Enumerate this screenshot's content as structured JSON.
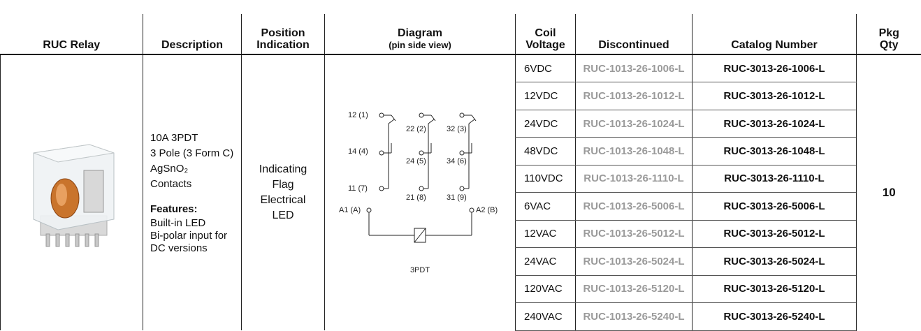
{
  "table": {
    "headers": [
      [
        "RUC Relay"
      ],
      [
        "Description"
      ],
      [
        "Position",
        "Indication"
      ],
      [
        "Diagram"
      ],
      [
        "Coil",
        "Voltage"
      ],
      [
        "Discontinued"
      ],
      [
        "Catalog Number"
      ],
      [
        "Pkg",
        "Qty"
      ]
    ],
    "diagram_subtitle": "(pin side view)",
    "description": [
      "10A 3PDT",
      "3 Pole (3 Form C)",
      "AgSnO₂",
      "Contacts"
    ],
    "features_heading": "Features:",
    "features": [
      "Built-in LED",
      "Bi-polar input for DC versions"
    ],
    "position": [
      "Indicating",
      "Flag",
      "Electrical",
      "LED"
    ],
    "diagram": {
      "pins": [
        "12 (1)",
        "22 (2)",
        "32 (3)",
        "14 (4)",
        "24 (5)",
        "34 (6)",
        "11 (7)",
        "21 (8)",
        "31 (9)",
        "A1 (A)",
        "A2 (B)"
      ],
      "caption": "3PDT"
    },
    "rows": [
      [
        "6VDC",
        "RUC-1013-26-1006-L",
        "RUC-3013-26-1006-L"
      ],
      [
        "12VDC",
        "RUC-1013-26-1012-L",
        "RUC-3013-26-1012-L"
      ],
      [
        "24VDC",
        "RUC-1013-26-1024-L",
        "RUC-3013-26-1024-L"
      ],
      [
        "48VDC",
        "RUC-1013-26-1048-L",
        "RUC-3013-26-1048-L"
      ],
      [
        "110VDC",
        "RUC-1013-26-1110-L",
        "RUC-3013-26-1110-L"
      ],
      [
        "6VAC",
        "RUC-1013-26-5006-L",
        "RUC-3013-26-5006-L"
      ],
      [
        "12VAC",
        "RUC-1013-26-5012-L",
        "RUC-3013-26-5012-L"
      ],
      [
        "24VAC",
        "RUC-1013-26-5024-L",
        "RUC-3013-26-5024-L"
      ],
      [
        "120VAC",
        "RUC-1013-26-5120-L",
        "RUC-3013-26-5120-L"
      ],
      [
        "240VAC",
        "RUC-1013-26-5240-L",
        "RUC-3013-26-5240-L"
      ]
    ],
    "pkg_qty": 10
  }
}
